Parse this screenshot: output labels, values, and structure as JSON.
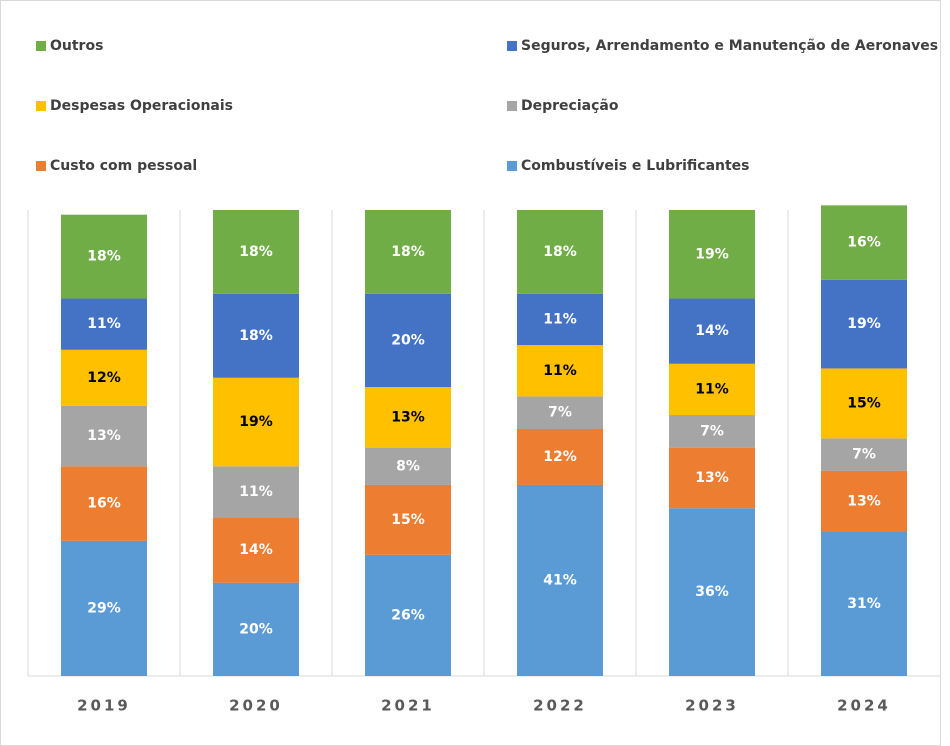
{
  "chart_data": {
    "type": "stacked_bar",
    "categories": [
      "2019",
      "2020",
      "2021",
      "2022",
      "2023",
      "2024"
    ],
    "series": [
      {
        "name": "Combustíveis e Lubrificantes",
        "color": "#5b9bd5",
        "label_color": "#ffffff",
        "values": [
          29,
          20,
          26,
          41,
          36,
          31
        ],
        "value_labels": [
          "29%",
          "20%",
          "26%",
          "41%",
          "36%",
          "31%"
        ]
      },
      {
        "name": "Custo com pessoal",
        "color": "#ed7d31",
        "label_color": "#ffffff",
        "values": [
          16,
          14,
          15,
          12,
          13,
          13
        ],
        "value_labels": [
          "16%",
          "14%",
          "15%",
          "12%",
          "13%",
          "13%"
        ]
      },
      {
        "name": "Depreciação",
        "color": "#a5a5a5",
        "label_color": "#ffffff",
        "values": [
          13,
          11,
          8,
          7,
          7,
          7
        ],
        "value_labels": [
          "13%",
          "11%",
          "8%",
          "7%",
          "7%",
          "7%"
        ]
      },
      {
        "name": "Despesas Operacionais",
        "color": "#ffc000",
        "label_color": "#000000",
        "values": [
          12,
          19,
          13,
          11,
          11,
          15
        ],
        "value_labels": [
          "12%",
          "19%",
          "13%",
          "11%",
          "11%",
          "15%"
        ]
      },
      {
        "name": "Seguros, Arrendamento e Manutenção de Aeronaves",
        "color": "#4472c4",
        "label_color": "#ffffff",
        "values": [
          11,
          18,
          20,
          11,
          14,
          19
        ],
        "value_labels": [
          "11%",
          "18%",
          "20%",
          "11%",
          "14%",
          "19%"
        ]
      },
      {
        "name": "Outros",
        "color": "#70ad47",
        "label_color": "#ffffff",
        "values": [
          18,
          18,
          18,
          18,
          19,
          16
        ],
        "value_labels": [
          "18%",
          "18%",
          "18%",
          "18%",
          "19%",
          "16%"
        ]
      }
    ]
  }
}
